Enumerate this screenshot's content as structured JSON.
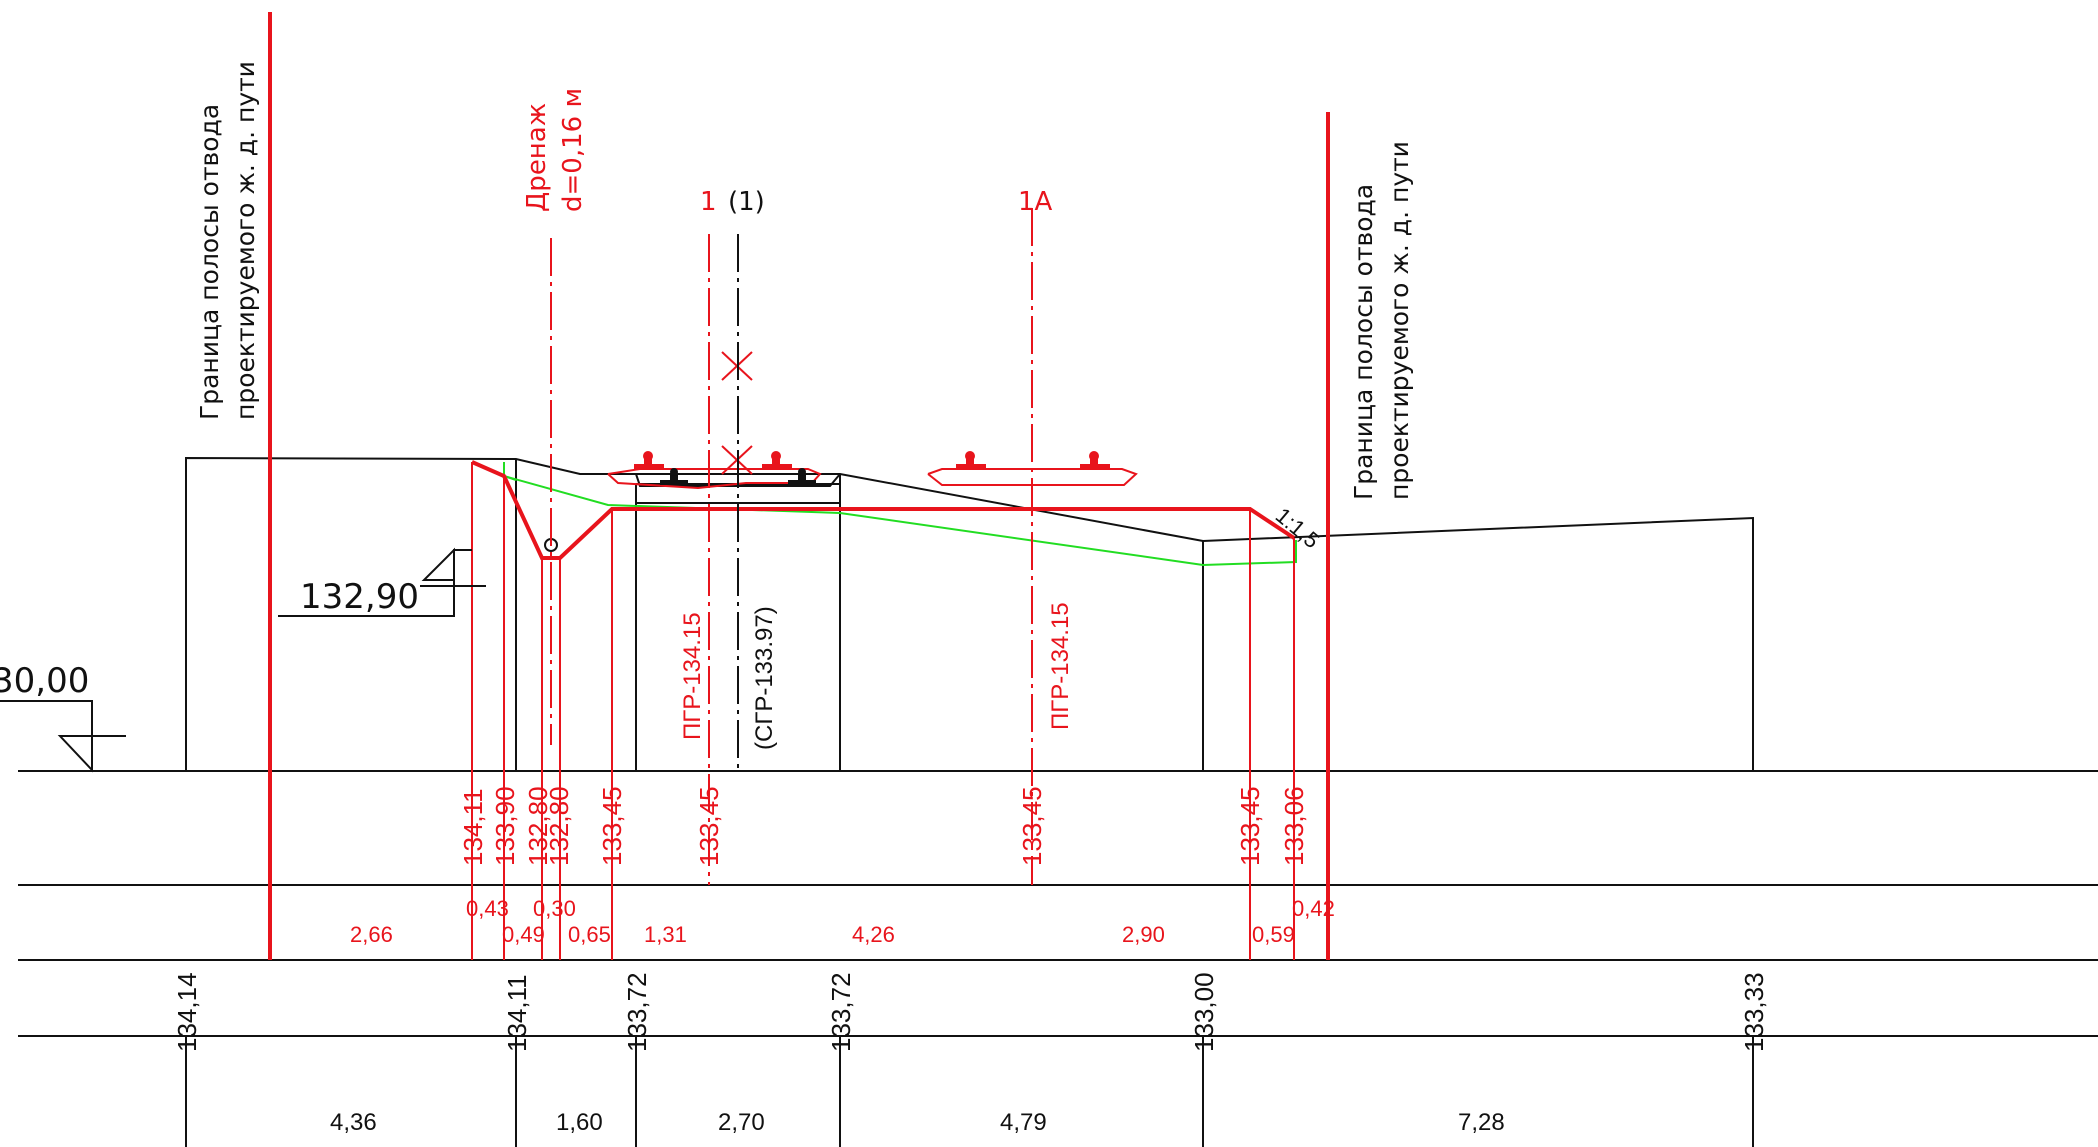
{
  "colors": {
    "design": "#e8141c",
    "existing": "#111111",
    "ground": "#22dd22",
    "background": "#ffffff"
  },
  "labels": {
    "boundary_left": [
      "Граница полосы отвода",
      "проектируемого ж. д. пути"
    ],
    "boundary_right": [
      "Граница полосы отвода",
      "проектируемого ж. д. пути"
    ],
    "drain": [
      "Дренаж",
      "d=0,16 м"
    ],
    "axis_1": "1",
    "axis_1_existing": "(1)",
    "axis_1a": "1A",
    "pgr_1": "ПГР-134.15",
    "sgr_1": "(СГР-133.97)",
    "pgr_1a": "ПГР-134.15",
    "slope": "1:1,5",
    "level_mark": "132,90",
    "datum": "30,00"
  },
  "design_elevations": [
    "134,11",
    "133,90",
    "132,80",
    "132,80",
    "133,45",
    "133,45",
    "133,45",
    "133,45",
    "133,06"
  ],
  "design_distances": [
    "2,66",
    "0,43",
    "0,49",
    "0,30",
    "0,65",
    "1,31",
    "4,26",
    "2,90",
    "0,59",
    "0,42"
  ],
  "existing_elevations": [
    "134,14",
    "134,11",
    "133,72",
    "133,72",
    "133,00",
    "133,33"
  ],
  "existing_distances": [
    "4,36",
    "1,60",
    "2,70",
    "4,79",
    "7,28"
  ]
}
